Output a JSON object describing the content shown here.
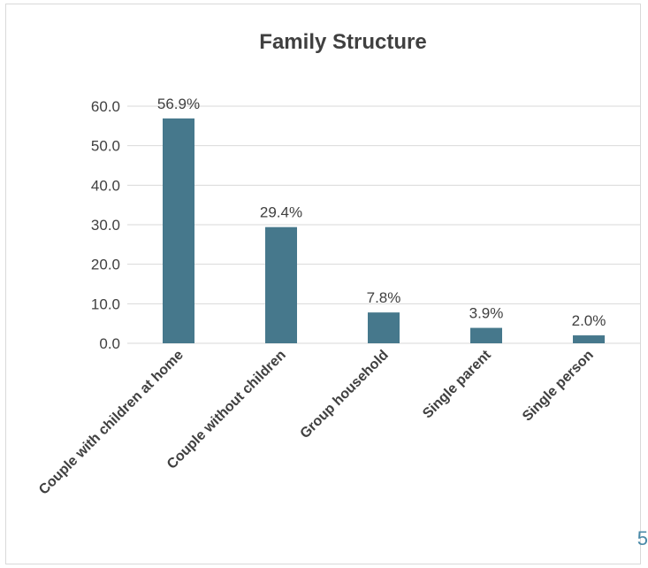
{
  "chart_data": {
    "type": "bar",
    "title": "Family Structure",
    "categories": [
      "Couple with children at home",
      "Couple without children",
      "Group household",
      "Single parent",
      "Single person"
    ],
    "values": [
      56.9,
      29.4,
      7.8,
      3.9,
      2.0
    ],
    "data_labels": [
      "56.9%",
      "29.4%",
      "7.8%",
      "3.9%",
      "2.0%"
    ],
    "yticks": [
      "0.0",
      "10.0",
      "20.0",
      "30.0",
      "40.0",
      "50.0",
      "60.0"
    ],
    "ylim": [
      0,
      60
    ],
    "grid": true,
    "bar_color": "#46788c",
    "grid_color": "#d9d9d9"
  },
  "corner_glyph": "5"
}
